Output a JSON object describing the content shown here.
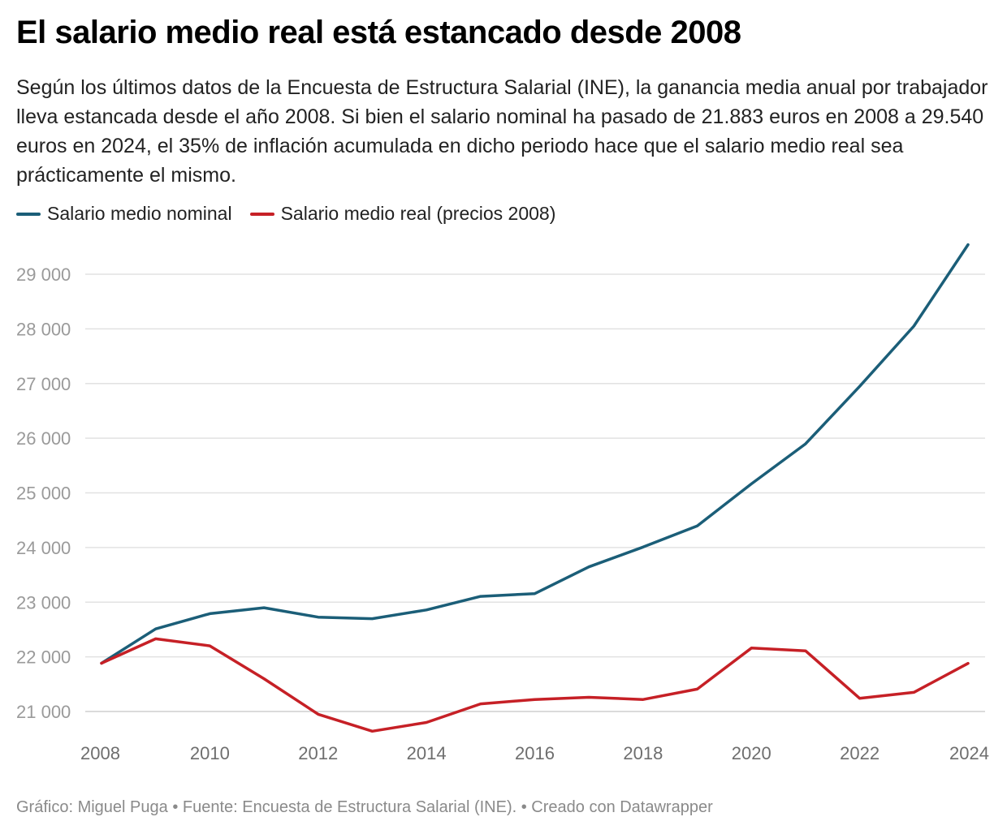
{
  "title": "El salario medio real está estancado desde 2008",
  "subtitle": "Según los últimos datos de la Encuesta de Estructura Salarial (INE), la ganancia media anual por trabajador lleva estancada desde el año 2008. Si bien el salario nominal ha pasado de 21.883 euros en 2008 a 29.540 euros en 2024, el 35% de inflación acumulada en dicho periodo hace que el salario medio real sea prácticamente el mismo.",
  "footer": "Gráfico: Miguel Puga • Fuente: Encuesta de Estructura Salarial (INE). • Creado con Datawrapper",
  "colors": {
    "nominal": "#1b5e78",
    "real": "#c62026",
    "grid": "#e2e2e2",
    "tick": "#9a9a9a"
  },
  "chart_data": {
    "type": "line",
    "title": "El salario medio real está estancado desde 2008",
    "xlabel": "",
    "ylabel": "",
    "legend": "top-left",
    "grid": true,
    "ylim": [
      20600,
      29600
    ],
    "xlim": [
      2008,
      2024
    ],
    "x_ticks": [
      2008,
      2010,
      2012,
      2014,
      2016,
      2018,
      2020,
      2022,
      2024
    ],
    "y_ticks": [
      {
        "value": 21000,
        "label": "21 000"
      },
      {
        "value": 22000,
        "label": "22 000"
      },
      {
        "value": 23000,
        "label": "23 000"
      },
      {
        "value": 24000,
        "label": "24 000"
      },
      {
        "value": 25000,
        "label": "25 000"
      },
      {
        "value": 26000,
        "label": "26 000"
      },
      {
        "value": 27000,
        "label": "27 000"
      },
      {
        "value": 28000,
        "label": "28 000"
      },
      {
        "value": 29000,
        "label": "29 000"
      }
    ],
    "x": [
      2008,
      2009,
      2010,
      2011,
      2012,
      2013,
      2014,
      2015,
      2016,
      2017,
      2018,
      2019,
      2020,
      2021,
      2022,
      2023,
      2024
    ],
    "series": [
      {
        "name": "Salario medio nominal",
        "color": "#1b5e78",
        "values": [
          21883,
          22511,
          22790,
          22899,
          22726,
          22698,
          22858,
          23106,
          23156,
          23647,
          24009,
          24396,
          25165,
          25897,
          26949,
          28050,
          29540
        ]
      },
      {
        "name": "Salario medio real (precios 2008)",
        "color": "#c62026",
        "values": [
          21883,
          22330,
          22200,
          21600,
          20950,
          20640,
          20800,
          21140,
          21220,
          21260,
          21220,
          21410,
          22160,
          22110,
          21240,
          21350,
          21880
        ]
      }
    ]
  }
}
